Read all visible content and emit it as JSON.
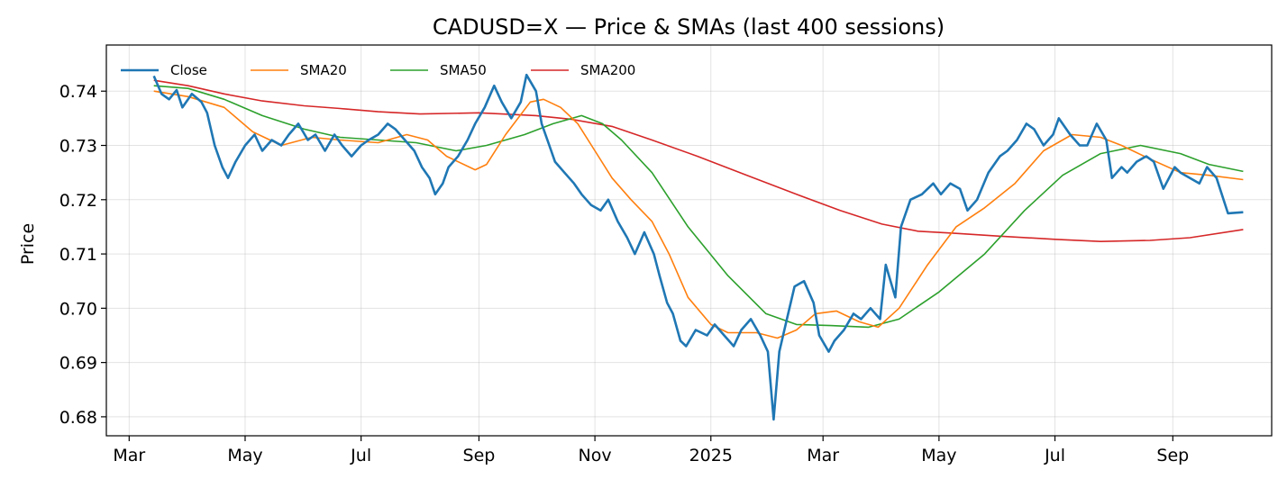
{
  "chart_data": {
    "type": "line",
    "title": "CADUSD=X — Price & SMAs (last 400 sessions)",
    "ylabel": "Price",
    "xlabel": "",
    "ylim": [
      0.6765,
      0.7485
    ],
    "yticks": [
      0.68,
      0.69,
      0.7,
      0.71,
      0.72,
      0.73,
      0.74
    ],
    "ytick_labels": [
      "0.68",
      "0.69",
      "0.70",
      "0.71",
      "0.72",
      "0.73",
      "0.74"
    ],
    "xlim": [
      "2024-02-18",
      "2025-10-23"
    ],
    "xticks": [
      "2024-03-01",
      "2024-05-01",
      "2024-07-01",
      "2024-09-01",
      "2024-11-01",
      "2025-01-01",
      "2025-03-01",
      "2025-05-01",
      "2025-07-01",
      "2025-09-01"
    ],
    "xtick_labels": [
      "Mar",
      "May",
      "Jul",
      "Sep",
      "Nov",
      "2025",
      "Mar",
      "May",
      "Jul",
      "Sep"
    ],
    "grid": true,
    "legend_position": "top-left",
    "series": [
      {
        "name": "Close",
        "color": "#1f77b4",
        "width": 2.6,
        "points": [
          [
            "2024-03-14",
            0.7428
          ],
          [
            "2024-03-18",
            0.7395
          ],
          [
            "2024-03-22",
            0.7385
          ],
          [
            "2024-03-26",
            0.7402
          ],
          [
            "2024-03-29",
            0.737
          ],
          [
            "2024-04-03",
            0.7395
          ],
          [
            "2024-04-08",
            0.738
          ],
          [
            "2024-04-11",
            0.736
          ],
          [
            "2024-04-15",
            0.73
          ],
          [
            "2024-04-19",
            0.726
          ],
          [
            "2024-04-22",
            0.724
          ],
          [
            "2024-04-26",
            0.727
          ],
          [
            "2024-05-01",
            0.73
          ],
          [
            "2024-05-06",
            0.732
          ],
          [
            "2024-05-10",
            0.729
          ],
          [
            "2024-05-15",
            0.731
          ],
          [
            "2024-05-20",
            0.73
          ],
          [
            "2024-05-24",
            0.732
          ],
          [
            "2024-05-29",
            0.734
          ],
          [
            "2024-06-03",
            0.731
          ],
          [
            "2024-06-07",
            0.732
          ],
          [
            "2024-06-12",
            0.729
          ],
          [
            "2024-06-17",
            0.732
          ],
          [
            "2024-06-21",
            0.73
          ],
          [
            "2024-06-26",
            0.728
          ],
          [
            "2024-07-01",
            0.73
          ],
          [
            "2024-07-05",
            0.731
          ],
          [
            "2024-07-10",
            0.732
          ],
          [
            "2024-07-15",
            0.734
          ],
          [
            "2024-07-19",
            0.733
          ],
          [
            "2024-07-24",
            0.731
          ],
          [
            "2024-07-29",
            0.729
          ],
          [
            "2024-08-02",
            0.726
          ],
          [
            "2024-08-06",
            0.724
          ],
          [
            "2024-08-09",
            0.721
          ],
          [
            "2024-08-13",
            0.723
          ],
          [
            "2024-08-16",
            0.726
          ],
          [
            "2024-08-21",
            0.728
          ],
          [
            "2024-08-26",
            0.731
          ],
          [
            "2024-08-30",
            0.734
          ],
          [
            "2024-09-04",
            0.737
          ],
          [
            "2024-09-09",
            0.741
          ],
          [
            "2024-09-13",
            0.738
          ],
          [
            "2024-09-18",
            0.735
          ],
          [
            "2024-09-23",
            0.738
          ],
          [
            "2024-09-26",
            0.743
          ],
          [
            "2024-10-01",
            0.74
          ],
          [
            "2024-10-04",
            0.734
          ],
          [
            "2024-10-08",
            0.73
          ],
          [
            "2024-10-11",
            0.727
          ],
          [
            "2024-10-16",
            0.725
          ],
          [
            "2024-10-21",
            0.723
          ],
          [
            "2024-10-25",
            0.721
          ],
          [
            "2024-10-30",
            0.719
          ],
          [
            "2024-11-04",
            0.718
          ],
          [
            "2024-11-08",
            0.72
          ],
          [
            "2024-11-13",
            0.716
          ],
          [
            "2024-11-18",
            0.713
          ],
          [
            "2024-11-22",
            0.71
          ],
          [
            "2024-11-27",
            0.714
          ],
          [
            "2024-12-02",
            0.71
          ],
          [
            "2024-12-05",
            0.706
          ],
          [
            "2024-12-09",
            0.701
          ],
          [
            "2024-12-12",
            0.699
          ],
          [
            "2024-12-16",
            0.694
          ],
          [
            "2024-12-19",
            0.693
          ],
          [
            "2024-12-24",
            0.696
          ],
          [
            "2024-12-30",
            0.695
          ],
          [
            "2025-01-03",
            0.697
          ],
          [
            "2025-01-08",
            0.695
          ],
          [
            "2025-01-13",
            0.693
          ],
          [
            "2025-01-17",
            0.696
          ],
          [
            "2025-01-22",
            0.698
          ],
          [
            "2025-01-27",
            0.695
          ],
          [
            "2025-01-31",
            0.692
          ],
          [
            "2025-02-03",
            0.6795
          ],
          [
            "2025-02-06",
            0.692
          ],
          [
            "2025-02-10",
            0.698
          ],
          [
            "2025-02-14",
            0.704
          ],
          [
            "2025-02-19",
            0.705
          ],
          [
            "2025-02-24",
            0.701
          ],
          [
            "2025-02-27",
            0.695
          ],
          [
            "2025-03-04",
            0.692
          ],
          [
            "2025-03-07",
            0.694
          ],
          [
            "2025-03-12",
            0.696
          ],
          [
            "2025-03-17",
            0.699
          ],
          [
            "2025-03-21",
            0.698
          ],
          [
            "2025-03-26",
            0.7
          ],
          [
            "2025-03-31",
            0.698
          ],
          [
            "2025-04-03",
            0.708
          ],
          [
            "2025-04-08",
            0.702
          ],
          [
            "2025-04-11",
            0.715
          ],
          [
            "2025-04-16",
            0.72
          ],
          [
            "2025-04-22",
            0.721
          ],
          [
            "2025-04-28",
            0.723
          ],
          [
            "2025-05-02",
            0.721
          ],
          [
            "2025-05-07",
            0.723
          ],
          [
            "2025-05-12",
            0.722
          ],
          [
            "2025-05-16",
            0.718
          ],
          [
            "2025-05-21",
            0.72
          ],
          [
            "2025-05-27",
            0.725
          ],
          [
            "2025-06-02",
            0.728
          ],
          [
            "2025-06-06",
            0.729
          ],
          [
            "2025-06-11",
            0.731
          ],
          [
            "2025-06-16",
            0.734
          ],
          [
            "2025-06-20",
            0.733
          ],
          [
            "2025-06-25",
            0.73
          ],
          [
            "2025-06-30",
            0.732
          ],
          [
            "2025-07-03",
            0.735
          ],
          [
            "2025-07-09",
            0.732
          ],
          [
            "2025-07-14",
            0.73
          ],
          [
            "2025-07-18",
            0.73
          ],
          [
            "2025-07-23",
            0.734
          ],
          [
            "2025-07-28",
            0.731
          ],
          [
            "2025-07-31",
            0.724
          ],
          [
            "2025-08-05",
            0.726
          ],
          [
            "2025-08-08",
            0.725
          ],
          [
            "2025-08-13",
            0.727
          ],
          [
            "2025-08-18",
            0.728
          ],
          [
            "2025-08-22",
            0.727
          ],
          [
            "2025-08-27",
            0.722
          ],
          [
            "2025-09-02",
            0.726
          ],
          [
            "2025-09-05",
            0.725
          ],
          [
            "2025-09-10",
            0.724
          ],
          [
            "2025-09-15",
            0.723
          ],
          [
            "2025-09-19",
            0.726
          ],
          [
            "2025-09-24",
            0.724
          ],
          [
            "2025-09-30",
            0.7175
          ],
          [
            "2025-10-08",
            0.7177
          ]
        ]
      },
      {
        "name": "SMA20",
        "color": "#ff7f0e",
        "width": 1.6,
        "points": [
          [
            "2024-03-14",
            0.74
          ],
          [
            "2024-04-01",
            0.739
          ],
          [
            "2024-04-20",
            0.737
          ],
          [
            "2024-05-05",
            0.7325
          ],
          [
            "2024-05-20",
            0.73
          ],
          [
            "2024-06-05",
            0.7315
          ],
          [
            "2024-06-20",
            0.731
          ],
          [
            "2024-07-10",
            0.7305
          ],
          [
            "2024-07-25",
            0.732
          ],
          [
            "2024-08-05",
            0.731
          ],
          [
            "2024-08-15",
            0.728
          ],
          [
            "2024-08-30",
            0.7255
          ],
          [
            "2024-09-05",
            0.7265
          ],
          [
            "2024-09-15",
            0.732
          ],
          [
            "2024-09-28",
            0.738
          ],
          [
            "2024-10-05",
            0.7385
          ],
          [
            "2024-10-14",
            0.737
          ],
          [
            "2024-10-23",
            0.734
          ],
          [
            "2024-11-01",
            0.729
          ],
          [
            "2024-11-10",
            0.724
          ],
          [
            "2024-11-20",
            0.72
          ],
          [
            "2024-12-01",
            0.716
          ],
          [
            "2024-12-10",
            0.71
          ],
          [
            "2024-12-20",
            0.702
          ],
          [
            "2025-01-01",
            0.697
          ],
          [
            "2025-01-10",
            0.6955
          ],
          [
            "2025-01-25",
            0.6955
          ],
          [
            "2025-02-05",
            0.6945
          ],
          [
            "2025-02-15",
            0.696
          ],
          [
            "2025-02-25",
            0.699
          ],
          [
            "2025-03-08",
            0.6995
          ],
          [
            "2025-03-20",
            0.6975
          ],
          [
            "2025-03-30",
            0.6965
          ],
          [
            "2025-04-10",
            0.7
          ],
          [
            "2025-04-25",
            0.708
          ],
          [
            "2025-05-10",
            0.715
          ],
          [
            "2025-05-25",
            0.7185
          ],
          [
            "2025-06-10",
            0.723
          ],
          [
            "2025-06-25",
            0.729
          ],
          [
            "2025-07-10",
            0.732
          ],
          [
            "2025-07-25",
            0.7315
          ],
          [
            "2025-08-05",
            0.73
          ],
          [
            "2025-08-20",
            0.7275
          ],
          [
            "2025-09-05",
            0.725
          ],
          [
            "2025-09-20",
            0.7245
          ],
          [
            "2025-10-08",
            0.7237
          ]
        ]
      },
      {
        "name": "SMA50",
        "color": "#2ca02c",
        "width": 1.6,
        "points": [
          [
            "2024-03-14",
            0.741
          ],
          [
            "2024-04-01",
            0.7405
          ],
          [
            "2024-04-20",
            0.7385
          ],
          [
            "2024-05-10",
            0.7355
          ],
          [
            "2024-06-01",
            0.733
          ],
          [
            "2024-06-20",
            0.7315
          ],
          [
            "2024-07-10",
            0.731
          ],
          [
            "2024-07-30",
            0.7305
          ],
          [
            "2024-08-20",
            0.729
          ],
          [
            "2024-09-05",
            0.73
          ],
          [
            "2024-09-25",
            0.732
          ],
          [
            "2024-10-10",
            0.734
          ],
          [
            "2024-10-25",
            0.7355
          ],
          [
            "2024-11-05",
            0.734
          ],
          [
            "2024-11-15",
            0.731
          ],
          [
            "2024-12-01",
            0.725
          ],
          [
            "2024-12-20",
            0.715
          ],
          [
            "2025-01-10",
            0.706
          ],
          [
            "2025-01-30",
            0.699
          ],
          [
            "2025-02-15",
            0.697
          ],
          [
            "2025-03-05",
            0.6968
          ],
          [
            "2025-03-25",
            0.6965
          ],
          [
            "2025-04-10",
            0.698
          ],
          [
            "2025-05-01",
            0.703
          ],
          [
            "2025-05-25",
            0.71
          ],
          [
            "2025-06-15",
            0.718
          ],
          [
            "2025-07-05",
            0.7245
          ],
          [
            "2025-07-25",
            0.7285
          ],
          [
            "2025-08-15",
            0.73
          ],
          [
            "2025-09-05",
            0.7285
          ],
          [
            "2025-09-20",
            0.7265
          ],
          [
            "2025-10-08",
            0.7252
          ]
        ]
      },
      {
        "name": "SMA200",
        "color": "#d62728",
        "width": 1.6,
        "points": [
          [
            "2024-03-14",
            0.742
          ],
          [
            "2024-04-01",
            0.741
          ],
          [
            "2024-04-20",
            0.7395
          ],
          [
            "2024-05-10",
            0.7382
          ],
          [
            "2024-06-01",
            0.7373
          ],
          [
            "2024-06-20",
            0.7368
          ],
          [
            "2024-07-10",
            0.7362
          ],
          [
            "2024-08-01",
            0.7358
          ],
          [
            "2024-09-01",
            0.736
          ],
          [
            "2024-10-01",
            0.7355
          ],
          [
            "2024-10-20",
            0.7348
          ],
          [
            "2024-11-10",
            0.7335
          ],
          [
            "2024-12-01",
            0.731
          ],
          [
            "2024-12-25",
            0.728
          ],
          [
            "2025-01-20",
            0.7245
          ],
          [
            "2025-02-15",
            0.721
          ],
          [
            "2025-03-10",
            0.718
          ],
          [
            "2025-04-01",
            0.7155
          ],
          [
            "2025-04-20",
            0.7142
          ],
          [
            "2025-05-10",
            0.7138
          ],
          [
            "2025-06-01",
            0.7133
          ],
          [
            "2025-07-01",
            0.7127
          ],
          [
            "2025-07-25",
            0.7123
          ],
          [
            "2025-08-20",
            0.7125
          ],
          [
            "2025-09-10",
            0.713
          ],
          [
            "2025-10-08",
            0.7145
          ]
        ]
      }
    ]
  }
}
